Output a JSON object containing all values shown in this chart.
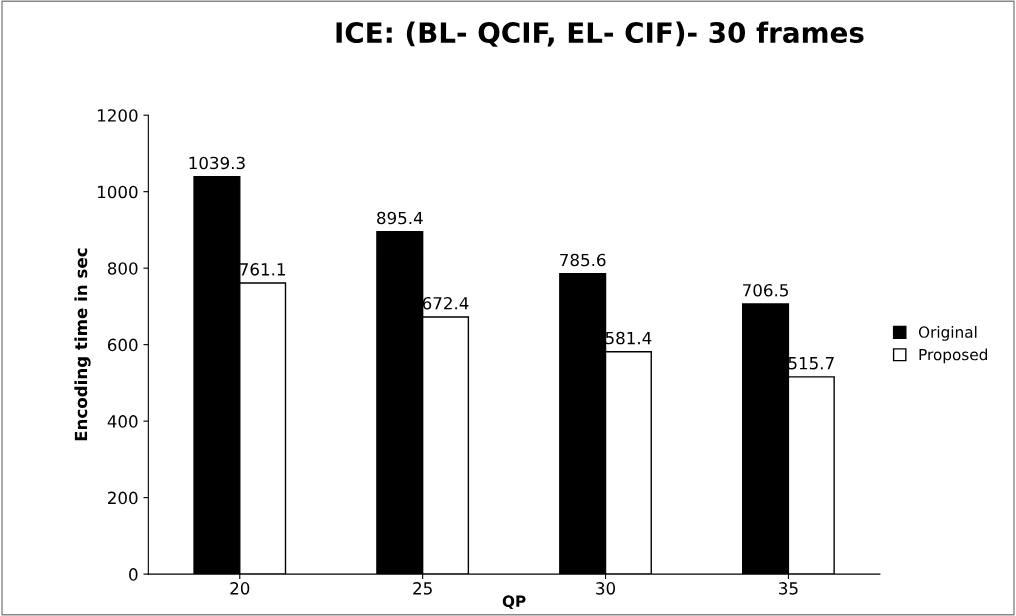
{
  "chart_data": {
    "type": "bar",
    "title": "ICE: (BL- QCIF, EL- CIF)- 30 frames",
    "xlabel": "QP",
    "ylabel": "Encoding time in sec",
    "categories": [
      "20",
      "25",
      "30",
      "35"
    ],
    "series": [
      {
        "name": "Original",
        "color": "#000000",
        "values": [
          1039.3,
          895.4,
          785.6,
          706.5
        ]
      },
      {
        "name": "Proposed",
        "color": "#ffffff",
        "values": [
          761.1,
          672.4,
          581.4,
          515.7
        ]
      }
    ],
    "ylim": [
      0,
      1200
    ],
    "yticks": [
      0,
      200,
      400,
      600,
      800,
      1000,
      1200
    ],
    "grid": false,
    "legend": "right",
    "data_labels": true
  }
}
